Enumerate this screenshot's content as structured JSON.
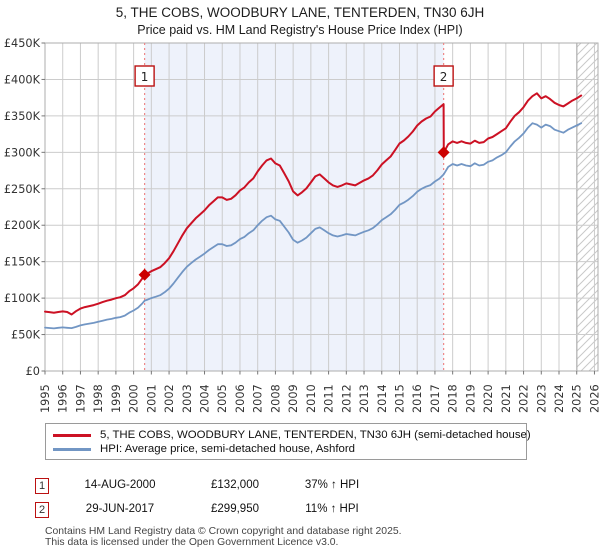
{
  "title": "5, THE COBS, WOODBURY LANE, TENTERDEN, TN30 6JH",
  "subtitle": "Price paid vs. HM Land Registry's House Price Index (HPI)",
  "legend": {
    "series1": "5, THE COBS, WOODBURY LANE, TENTERDEN, TN30 6JH (semi-detached house)",
    "series2": "HPI: Average price, semi-detached house, Ashford"
  },
  "annotations": [
    {
      "num": "1",
      "date": "14-AUG-2000",
      "price": "£132,000",
      "hpi": "37% ↑ HPI"
    },
    {
      "num": "2",
      "date": "29-JUN-2017",
      "price": "£299,950",
      "hpi": "11% ↑ HPI"
    }
  ],
  "footer": {
    "line1": "Contains HM Land Registry data © Crown copyright and database right 2025.",
    "line2": "This data is licensed under the Open Government Licence v3.0."
  },
  "colors": {
    "price_paid": "#cc1124",
    "hpi": "#7296c4",
    "shade": "#eef2fb",
    "dotted": "#ee8888",
    "grid": "#cccccc",
    "plot_border": "#adadad",
    "marker": "#cc0000",
    "marker_box_border": "#bb1111",
    "hatch": "#c9c9c9",
    "hatch_edge": "#8a8a8a"
  },
  "chart_data": {
    "type": "line",
    "title": "5, THE COBS, WOODBURY LANE, TENTERDEN, TN30 6JH",
    "subtitle": "Price paid vs. HM Land Registry's House Price Index (HPI)",
    "units": "GBP_thousands",
    "grid": true,
    "legend_position": "bottom",
    "x_axis": {
      "min": 1995,
      "max": 2026.2,
      "tick_years": [
        1995,
        1996,
        1997,
        1998,
        1999,
        2000,
        2001,
        2002,
        2003,
        2004,
        2005,
        2006,
        2007,
        2008,
        2009,
        2010,
        2011,
        2012,
        2013,
        2014,
        2015,
        2016,
        2017,
        2018,
        2019,
        2020,
        2021,
        2022,
        2023,
        2024,
        2025,
        2026
      ]
    },
    "y_axis": {
      "min": 0,
      "max": 450,
      "tick_values": [
        0,
        50,
        100,
        150,
        200,
        250,
        300,
        350,
        400,
        450
      ],
      "tick_labels": [
        "£0",
        "£50K",
        "£100K",
        "£150K",
        "£200K",
        "£250K",
        "£300K",
        "£350K",
        "£400K",
        "£450K"
      ]
    },
    "shaded_span": [
      2000.62,
      2017.49
    ],
    "future_hatch_start": 2025.0,
    "sales": [
      {
        "label": "1",
        "year": 2000.62,
        "value_k": 132.0
      },
      {
        "label": "2",
        "year": 2017.49,
        "value_k": 299.95
      }
    ],
    "series": [
      {
        "id": "price-paid",
        "name": "5, THE COBS, WOODBURY LANE, TENTERDEN, TN30 6JH (semi-detached house)",
        "color": "#cc1124",
        "width": 2,
        "points": [
          [
            1995.0,
            81.5
          ],
          [
            1995.25,
            80.8
          ],
          [
            1995.5,
            80.0
          ],
          [
            1995.75,
            81.0
          ],
          [
            1996.0,
            81.8
          ],
          [
            1996.25,
            81.0
          ],
          [
            1996.5,
            77.5
          ],
          [
            1996.75,
            82.0
          ],
          [
            1997.0,
            85.6
          ],
          [
            1997.25,
            87.6
          ],
          [
            1997.5,
            89.0
          ],
          [
            1997.75,
            90.4
          ],
          [
            1998.0,
            92.4
          ],
          [
            1998.25,
            94.5
          ],
          [
            1998.5,
            96.5
          ],
          [
            1998.75,
            97.9
          ],
          [
            1999.0,
            99.9
          ],
          [
            1999.25,
            101.3
          ],
          [
            1999.5,
            104.0
          ],
          [
            1999.75,
            109.5
          ],
          [
            2000.0,
            113.5
          ],
          [
            2000.25,
            119.1
          ],
          [
            2000.5,
            127.3
          ],
          [
            2000.62,
            132.0
          ],
          [
            2000.75,
            133.5
          ],
          [
            2001.0,
            136.9
          ],
          [
            2001.25,
            139.6
          ],
          [
            2001.5,
            142.4
          ],
          [
            2001.75,
            147.9
          ],
          [
            2002.0,
            154.7
          ],
          [
            2002.25,
            164.3
          ],
          [
            2002.5,
            175.2
          ],
          [
            2002.75,
            186.2
          ],
          [
            2003.0,
            195.8
          ],
          [
            2003.25,
            202.6
          ],
          [
            2003.5,
            209.5
          ],
          [
            2003.75,
            214.9
          ],
          [
            2004.0,
            220.4
          ],
          [
            2004.25,
            227.3
          ],
          [
            2004.5,
            232.7
          ],
          [
            2004.75,
            238.2
          ],
          [
            2005.0,
            238.2
          ],
          [
            2005.25,
            234.8
          ],
          [
            2005.5,
            236.2
          ],
          [
            2005.75,
            241.0
          ],
          [
            2006.0,
            247.8
          ],
          [
            2006.25,
            251.9
          ],
          [
            2006.5,
            258.7
          ],
          [
            2006.75,
            264.2
          ],
          [
            2007.0,
            273.8
          ],
          [
            2007.25,
            282.0
          ],
          [
            2007.5,
            288.9
          ],
          [
            2007.75,
            291.6
          ],
          [
            2008.0,
            284.8
          ],
          [
            2008.25,
            282.0
          ],
          [
            2008.5,
            271.1
          ],
          [
            2008.75,
            260.1
          ],
          [
            2009.0,
            246.4
          ],
          [
            2009.25,
            240.9
          ],
          [
            2009.5,
            245.1
          ],
          [
            2009.75,
            250.5
          ],
          [
            2010.0,
            258.7
          ],
          [
            2010.25,
            267.0
          ],
          [
            2010.5,
            269.7
          ],
          [
            2010.75,
            264.2
          ],
          [
            2011.0,
            258.7
          ],
          [
            2011.25,
            254.6
          ],
          [
            2011.5,
            252.6
          ],
          [
            2011.75,
            254.6
          ],
          [
            2012.0,
            257.4
          ],
          [
            2012.25,
            256.0
          ],
          [
            2012.5,
            254.6
          ],
          [
            2012.75,
            258.1
          ],
          [
            2013.0,
            261.5
          ],
          [
            2013.25,
            264.2
          ],
          [
            2013.5,
            268.3
          ],
          [
            2013.75,
            275.2
          ],
          [
            2014.0,
            283.4
          ],
          [
            2014.25,
            288.9
          ],
          [
            2014.5,
            294.3
          ],
          [
            2014.75,
            303.0
          ],
          [
            2015.0,
            312.1
          ],
          [
            2015.25,
            316.2
          ],
          [
            2015.5,
            321.7
          ],
          [
            2015.75,
            328.6
          ],
          [
            2016.0,
            336.8
          ],
          [
            2016.25,
            342.3
          ],
          [
            2016.5,
            346.4
          ],
          [
            2016.75,
            349.1
          ],
          [
            2017.0,
            356.0
          ],
          [
            2017.25,
            361.4
          ],
          [
            2017.49,
            366.0
          ],
          [
            2017.5,
            299.95
          ],
          [
            2017.75,
            311.0
          ],
          [
            2018.0,
            315.0
          ],
          [
            2018.25,
            313.0
          ],
          [
            2018.5,
            315.2
          ],
          [
            2018.75,
            313.0
          ],
          [
            2019.0,
            312.0
          ],
          [
            2019.25,
            316.0
          ],
          [
            2019.5,
            313.0
          ],
          [
            2019.75,
            314.0
          ],
          [
            2020.0,
            319.0
          ],
          [
            2020.25,
            321.0
          ],
          [
            2020.5,
            325.0
          ],
          [
            2020.75,
            329.0
          ],
          [
            2021.0,
            333.0
          ],
          [
            2021.25,
            342.0
          ],
          [
            2021.5,
            350.0
          ],
          [
            2021.75,
            355.0
          ],
          [
            2022.0,
            362.0
          ],
          [
            2022.25,
            371.0
          ],
          [
            2022.5,
            377.0
          ],
          [
            2022.75,
            381.0
          ],
          [
            2023.0,
            374.0
          ],
          [
            2023.25,
            377.0
          ],
          [
            2023.5,
            373.0
          ],
          [
            2023.75,
            368.0
          ],
          [
            2024.0,
            365.0
          ],
          [
            2024.25,
            363.0
          ],
          [
            2024.5,
            367.0
          ],
          [
            2024.75,
            371.0
          ],
          [
            2025.0,
            374.0
          ],
          [
            2025.25,
            378.0
          ]
        ]
      },
      {
        "id": "hpi",
        "name": "HPI: Average price, semi-detached house, Ashford",
        "color": "#7296c4",
        "width": 1.8,
        "points": [
          [
            1995.0,
            59.5
          ],
          [
            1995.25,
            59.0
          ],
          [
            1995.5,
            58.5
          ],
          [
            1995.75,
            59.2
          ],
          [
            1996.0,
            59.8
          ],
          [
            1996.25,
            59.2
          ],
          [
            1996.5,
            58.8
          ],
          [
            1996.75,
            60.5
          ],
          [
            1997.0,
            62.5
          ],
          [
            1997.25,
            64.0
          ],
          [
            1997.5,
            65.0
          ],
          [
            1997.75,
            66.0
          ],
          [
            1998.0,
            67.5
          ],
          [
            1998.25,
            69.0
          ],
          [
            1998.5,
            70.5
          ],
          [
            1998.75,
            71.5
          ],
          [
            1999.0,
            73.0
          ],
          [
            1999.25,
            74.0
          ],
          [
            1999.5,
            76.0
          ],
          [
            1999.75,
            80.0
          ],
          [
            2000.0,
            83.0
          ],
          [
            2000.25,
            87.0
          ],
          [
            2000.5,
            93.0
          ],
          [
            2000.62,
            96.4
          ],
          [
            2000.75,
            97.5
          ],
          [
            2001.0,
            100.0
          ],
          [
            2001.25,
            102.0
          ],
          [
            2001.5,
            104.0
          ],
          [
            2001.75,
            108.0
          ],
          [
            2002.0,
            113.0
          ],
          [
            2002.25,
            120.0
          ],
          [
            2002.5,
            128.0
          ],
          [
            2002.75,
            136.0
          ],
          [
            2003.0,
            143.0
          ],
          [
            2003.25,
            148.0
          ],
          [
            2003.5,
            153.0
          ],
          [
            2003.75,
            157.0
          ],
          [
            2004.0,
            161.0
          ],
          [
            2004.25,
            166.0
          ],
          [
            2004.5,
            170.0
          ],
          [
            2004.75,
            174.0
          ],
          [
            2005.0,
            174.0
          ],
          [
            2005.25,
            171.5
          ],
          [
            2005.5,
            172.5
          ],
          [
            2005.75,
            176.0
          ],
          [
            2006.0,
            181.0
          ],
          [
            2006.25,
            184.0
          ],
          [
            2006.5,
            189.0
          ],
          [
            2006.75,
            193.0
          ],
          [
            2007.0,
            200.0
          ],
          [
            2007.25,
            206.0
          ],
          [
            2007.5,
            211.0
          ],
          [
            2007.75,
            213.0
          ],
          [
            2008.0,
            208.0
          ],
          [
            2008.25,
            206.0
          ],
          [
            2008.5,
            198.0
          ],
          [
            2008.75,
            190.0
          ],
          [
            2009.0,
            180.0
          ],
          [
            2009.25,
            176.0
          ],
          [
            2009.5,
            179.0
          ],
          [
            2009.75,
            183.0
          ],
          [
            2010.0,
            189.0
          ],
          [
            2010.25,
            195.0
          ],
          [
            2010.5,
            197.0
          ],
          [
            2010.75,
            193.0
          ],
          [
            2011.0,
            189.0
          ],
          [
            2011.25,
            186.0
          ],
          [
            2011.5,
            184.5
          ],
          [
            2011.75,
            186.0
          ],
          [
            2012.0,
            188.0
          ],
          [
            2012.25,
            187.0
          ],
          [
            2012.5,
            186.0
          ],
          [
            2012.75,
            188.5
          ],
          [
            2013.0,
            191.0
          ],
          [
            2013.25,
            193.0
          ],
          [
            2013.5,
            196.0
          ],
          [
            2013.75,
            201.0
          ],
          [
            2014.0,
            207.0
          ],
          [
            2014.25,
            211.0
          ],
          [
            2014.5,
            215.0
          ],
          [
            2014.75,
            221.0
          ],
          [
            2015.0,
            228.0
          ],
          [
            2015.25,
            231.0
          ],
          [
            2015.5,
            235.0
          ],
          [
            2015.75,
            240.0
          ],
          [
            2016.0,
            246.0
          ],
          [
            2016.25,
            250.0
          ],
          [
            2016.5,
            253.0
          ],
          [
            2016.75,
            255.0
          ],
          [
            2017.0,
            260.0
          ],
          [
            2017.25,
            264.0
          ],
          [
            2017.5,
            270.0
          ],
          [
            2017.75,
            280.0
          ],
          [
            2018.0,
            284.0
          ],
          [
            2018.25,
            282.0
          ],
          [
            2018.5,
            284.0
          ],
          [
            2018.75,
            282.0
          ],
          [
            2019.0,
            281.0
          ],
          [
            2019.25,
            285.0
          ],
          [
            2019.5,
            282.0
          ],
          [
            2019.75,
            283.0
          ],
          [
            2020.0,
            287.0
          ],
          [
            2020.25,
            289.0
          ],
          [
            2020.5,
            293.0
          ],
          [
            2020.75,
            296.0
          ],
          [
            2021.0,
            300.0
          ],
          [
            2021.25,
            308.0
          ],
          [
            2021.5,
            315.0
          ],
          [
            2021.75,
            320.0
          ],
          [
            2022.0,
            326.0
          ],
          [
            2022.25,
            334.0
          ],
          [
            2022.5,
            340.0
          ],
          [
            2022.75,
            338.0
          ],
          [
            2023.0,
            334.0
          ],
          [
            2023.25,
            338.0
          ],
          [
            2023.5,
            336.0
          ],
          [
            2023.75,
            331.0
          ],
          [
            2024.0,
            329.0
          ],
          [
            2024.25,
            327.0
          ],
          [
            2024.5,
            331.0
          ],
          [
            2024.75,
            334.0
          ],
          [
            2025.0,
            337.0
          ],
          [
            2025.25,
            340.0
          ]
        ]
      }
    ]
  }
}
